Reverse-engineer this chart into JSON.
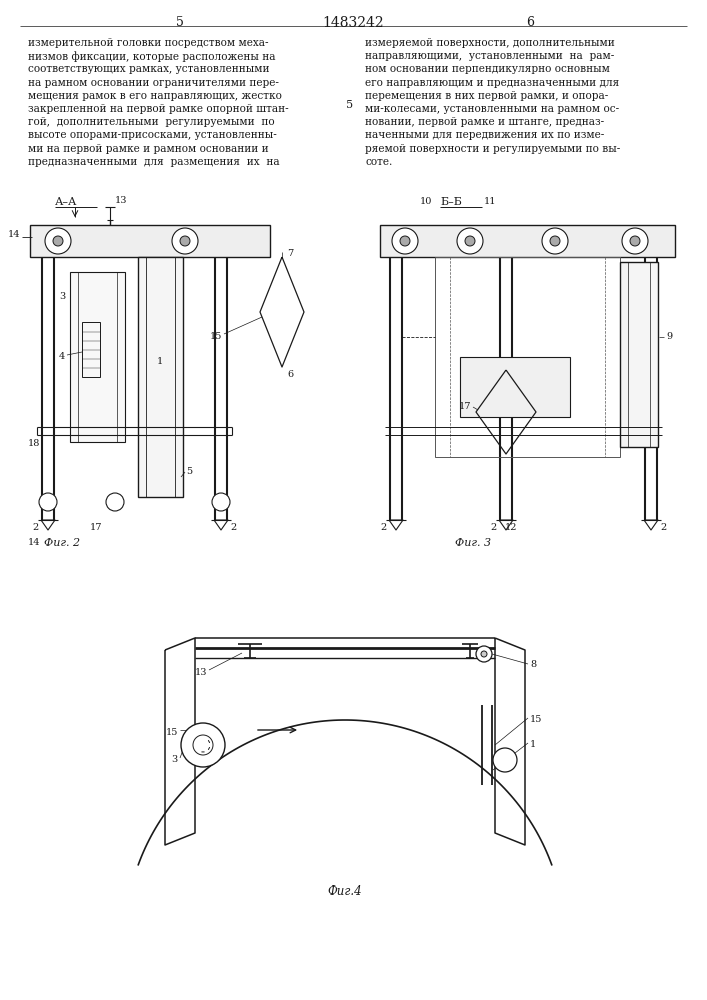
{
  "page_number_center": "1483242",
  "page_left": "5",
  "page_right": "6",
  "text_left": "измерительной головки посредством меха-\nнизмов фиксации, которые расположены на\nсоответствующих рамках, установленными\nна рамном основании ограничителями пере-\nмещения рамок в его направляющих, жестко\nзакрепленной на первой рамке опорной штан-\nгой,  дополнительными  регулируемыми  по\nвысоте опорами-присосками, установленны-\nми на первой рамке и рамном основании и\nпредназначенными  для  размещения  их  на",
  "text_right": "измеряемой поверхности, дополнительными\nнаправляющими,  установленными  на  рам-\nном основании перпендикулярно основным\nего направляющим и предназначенными для\nперемещения в них первой рамки, и опора-\nми-колесами, установленными на рамном ос-\nновании, первой рамке и штанге, предназ-\nначенными для передвижения их по изме-\nряемой поверхности и регулируемыми по вы-\nсоте.",
  "fig2_label": "Фиг. 2",
  "fig3_label": "Фиг. 3",
  "fig4_label": "Фиг.4",
  "aa_label": "А–А",
  "bb_label": "Б–Б",
  "bg_color": "#ffffff",
  "line_color": "#1a1a1a",
  "text_color": "#1a1a1a"
}
